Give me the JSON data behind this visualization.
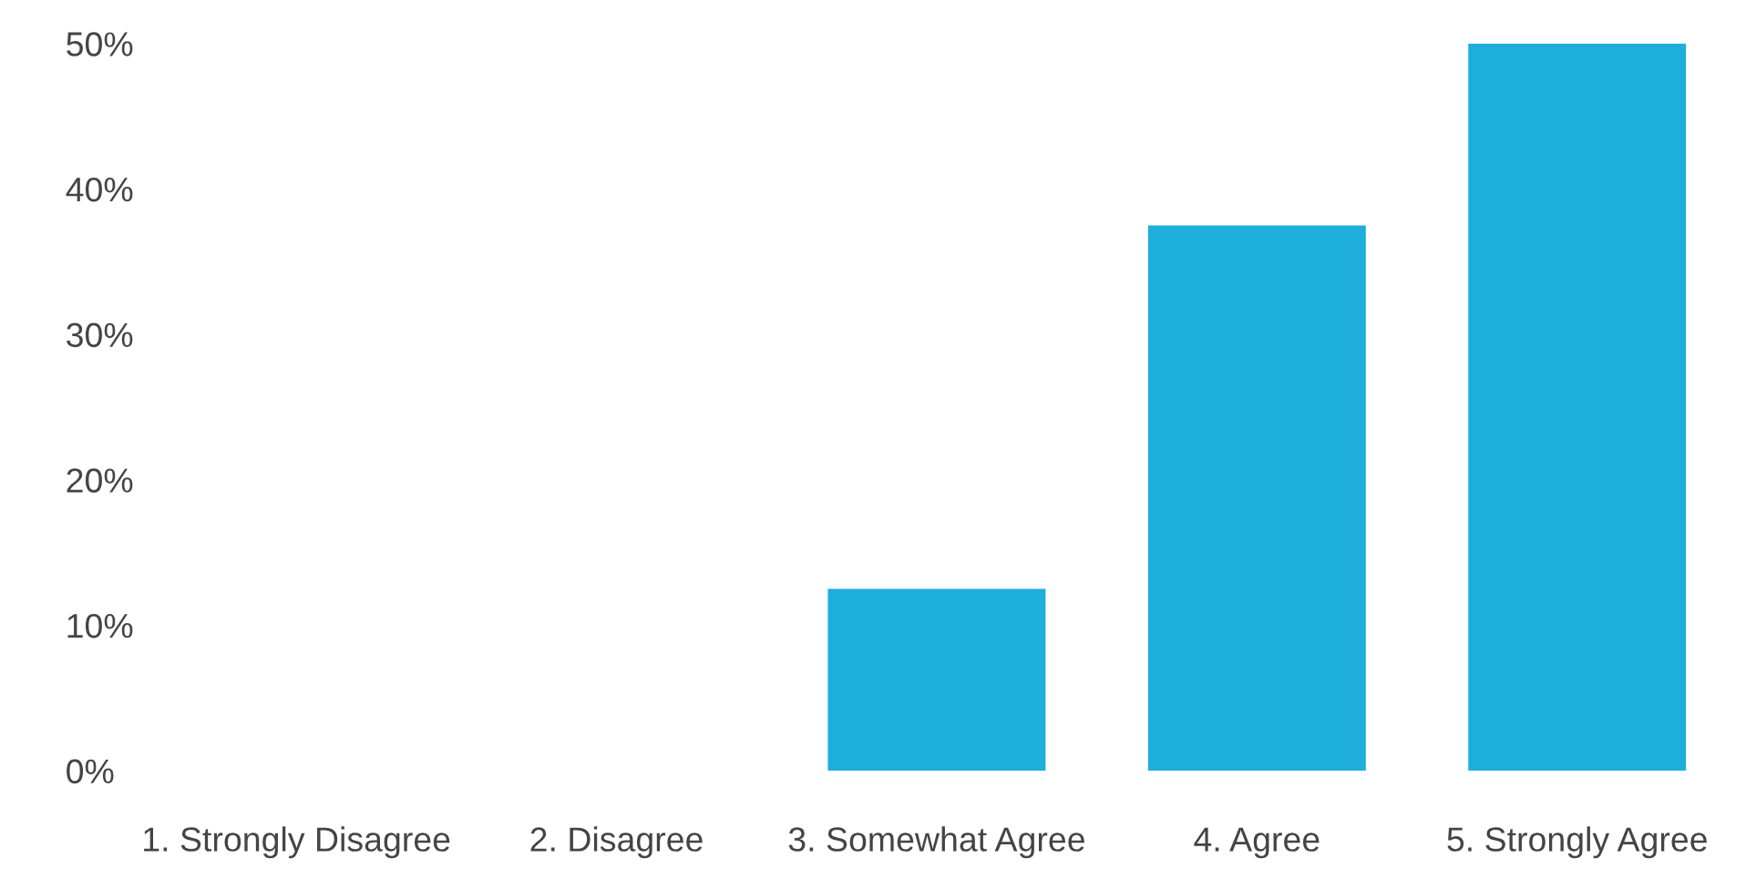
{
  "chart_data": {
    "type": "bar",
    "categories": [
      "1. Strongly Disagree",
      "2. Disagree",
      "3. Somewhat Agree",
      "4. Agree",
      "5. Strongly Agree"
    ],
    "values": [
      0,
      0,
      12.5,
      37.5,
      50
    ],
    "color": "#1daedb",
    "ylim": [
      0,
      50
    ],
    "yticks": [
      {
        "value": 0,
        "label": "0%"
      },
      {
        "value": 10,
        "label": "10%"
      },
      {
        "value": 20,
        "label": "20%"
      },
      {
        "value": 30,
        "label": "30%"
      },
      {
        "value": 40,
        "label": "40%"
      },
      {
        "value": 50,
        "label": "50%"
      }
    ],
    "grid": false,
    "legend": false
  }
}
